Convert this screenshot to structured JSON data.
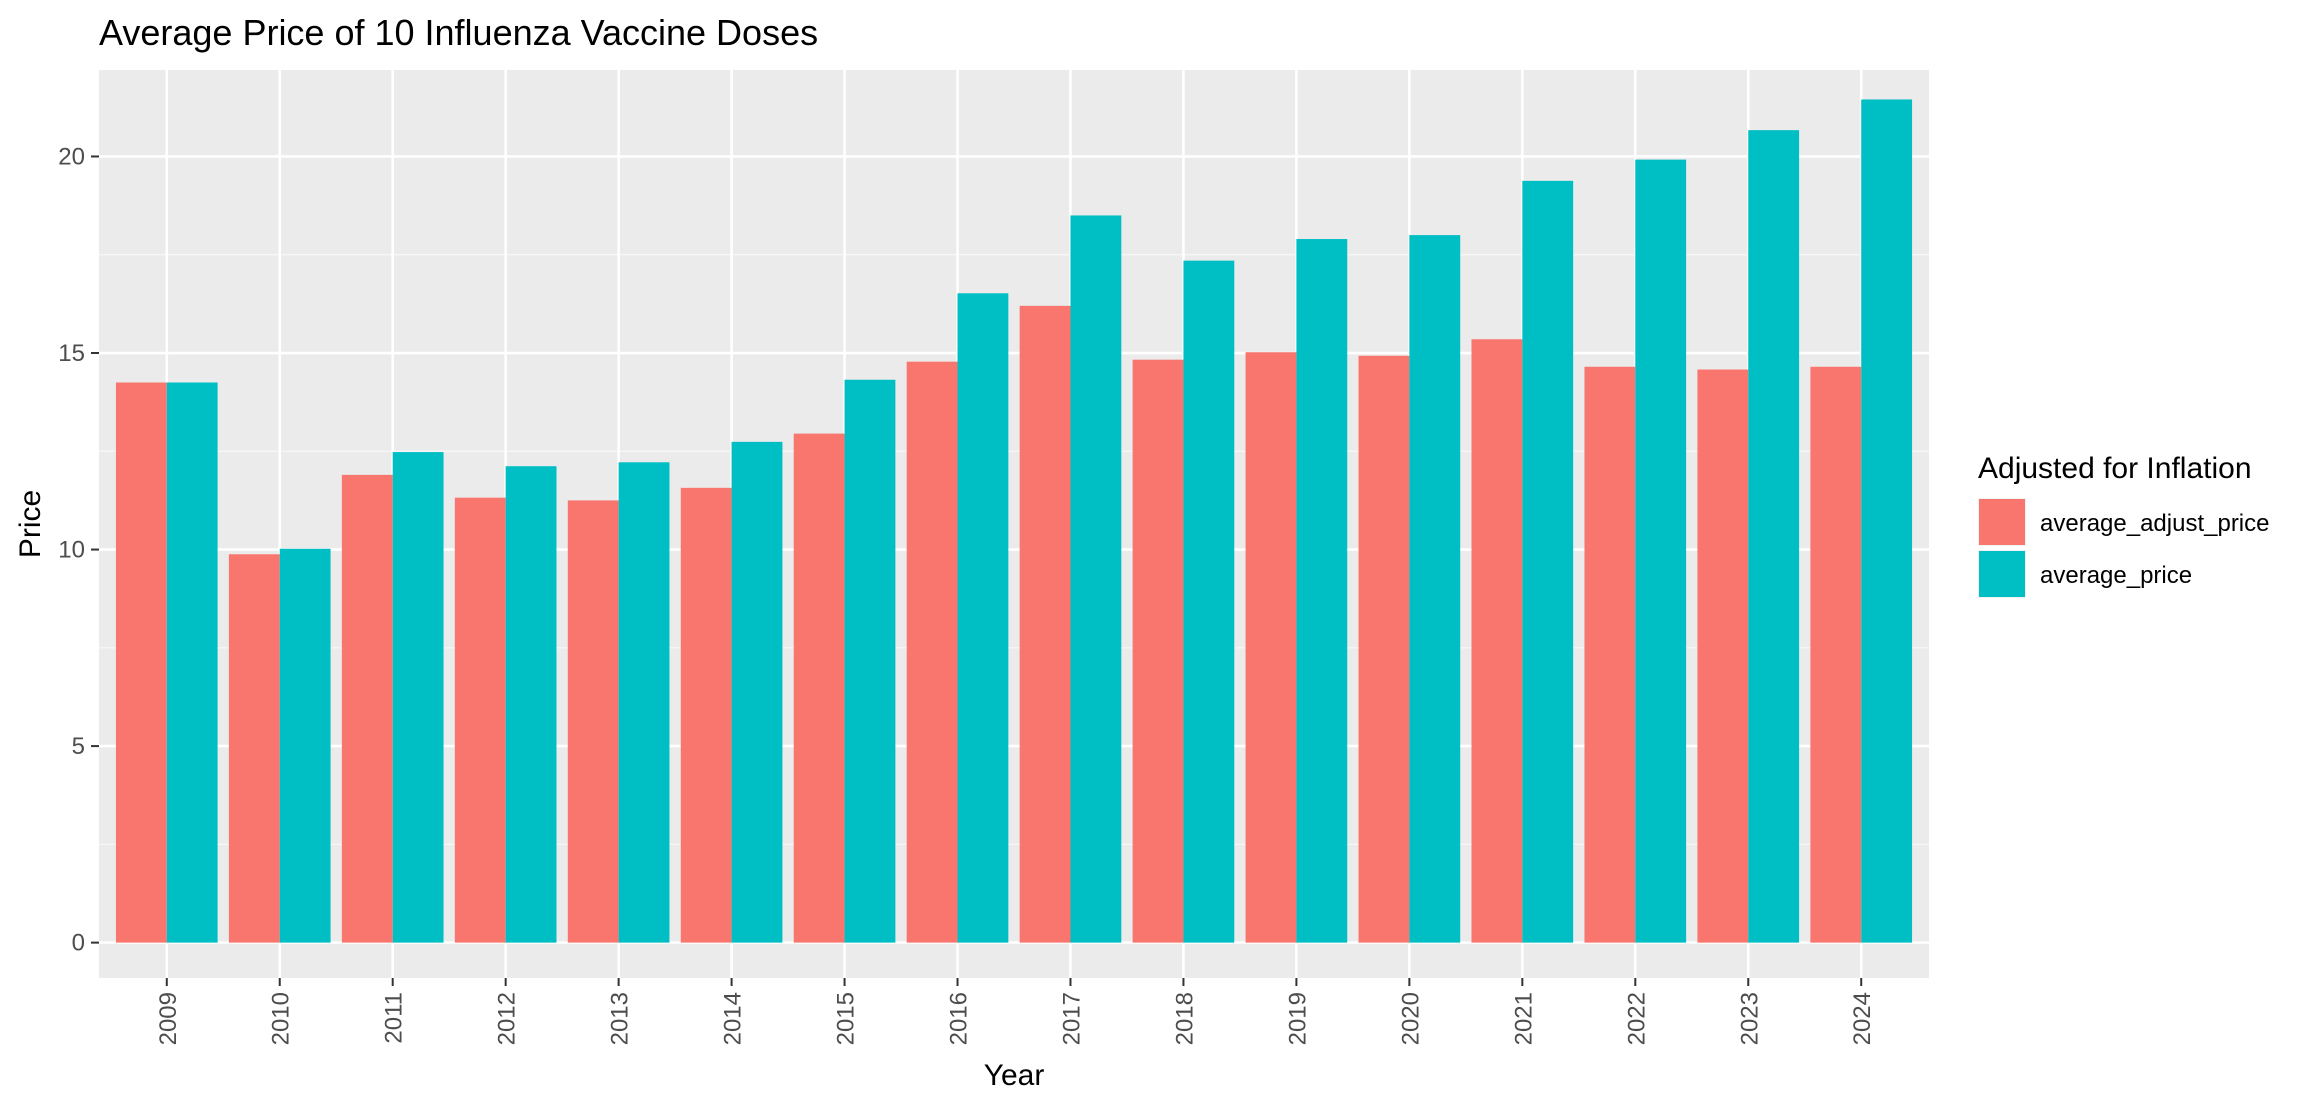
{
  "chart_data": {
    "type": "bar",
    "title": "Average Price of 10 Influenza Vaccine Doses",
    "xlabel": "Year",
    "ylabel": "Price",
    "categories": [
      "2009",
      "2010",
      "2011",
      "2012",
      "2013",
      "2014",
      "2015",
      "2016",
      "2017",
      "2018",
      "2019",
      "2020",
      "2021",
      "2022",
      "2023",
      "2024"
    ],
    "series": [
      {
        "name": "average_adjust_price",
        "color": "#F8766D",
        "values": [
          14.25,
          9.88,
          11.9,
          11.32,
          11.25,
          11.57,
          12.95,
          14.78,
          16.2,
          14.83,
          15.02,
          14.93,
          15.35,
          14.65,
          14.58,
          14.65
        ]
      },
      {
        "name": "average_price",
        "color": "#00BFC4",
        "values": [
          14.25,
          10.02,
          12.48,
          12.12,
          12.22,
          12.74,
          14.32,
          16.52,
          18.5,
          17.35,
          17.9,
          18.0,
          19.38,
          19.92,
          20.67,
          21.45
        ]
      }
    ],
    "ylim": [
      -0.9,
      22.2
    ],
    "yticks": [
      0,
      5,
      10,
      15,
      20
    ],
    "grid": true,
    "panel_background": "#EBEBEB",
    "legend": {
      "title": "Adjusted for Inflation",
      "position": "right"
    }
  }
}
